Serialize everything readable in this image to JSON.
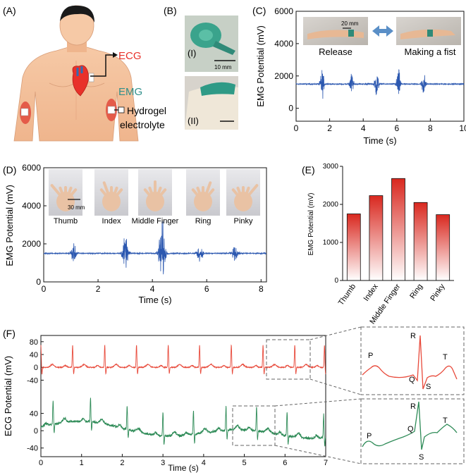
{
  "panel_labels": {
    "a": "(A)",
    "b": "(B)",
    "c": "(C)",
    "d": "(D)",
    "e": "(E)",
    "f": "(F)"
  },
  "panel_a": {
    "ecg": "ECG",
    "emg": "EMG",
    "hydrogel_line1": "Hydrogel",
    "hydrogel_line2": "electrolyte",
    "colors": {
      "ecg": "#e8312a",
      "emg": "#2f8f8a"
    }
  },
  "panel_b": {
    "label1": "(I)",
    "label2": "(II)",
    "scale": "10 mm"
  },
  "panel_c": {
    "scale": "20 mm",
    "release": "Release",
    "fist": "Making a fist",
    "chart_data": {
      "type": "line",
      "ylabel": "EMG Potential (mV)",
      "xlabel": "Time (s)",
      "xlim": [
        0,
        10
      ],
      "ylim": [
        -800,
        6000
      ],
      "x_ticks": [
        "0",
        "2",
        "4",
        "6",
        "8",
        "10"
      ],
      "y_ticks": [
        "0",
        "2000",
        "4000",
        "6000"
      ],
      "baseline": 1500,
      "bursts": [
        {
          "t": 1.55,
          "amp": 650
        },
        {
          "t": 3.3,
          "amp": 500
        },
        {
          "t": 4.8,
          "amp": 600
        },
        {
          "t": 6.1,
          "amp": 650
        },
        {
          "t": 7.6,
          "amp": 550
        }
      ],
      "color": "#2c58b0"
    }
  },
  "panel_d": {
    "scale": "30 mm",
    "fingers": [
      "Thumb",
      "Index",
      "Middle Finger",
      "Ring",
      "Pinky"
    ],
    "chart_data": {
      "type": "line",
      "ylabel": "EMG Potential (mV)",
      "xlabel": "Time (s)",
      "xlim": [
        0,
        8.2
      ],
      "ylim": [
        0,
        6000
      ],
      "x_ticks": [
        "0",
        "2",
        "4",
        "6",
        "8"
      ],
      "y_ticks": [
        "0",
        "2000",
        "4000",
        "6000"
      ],
      "baseline": 1500,
      "bursts": [
        {
          "t": 1.1,
          "amp": 300
        },
        {
          "t": 3.0,
          "amp": 550
        },
        {
          "t": 4.35,
          "amp": 1200
        },
        {
          "t": 5.75,
          "amp": 280
        },
        {
          "t": 7.05,
          "amp": 260
        }
      ],
      "color": "#2c58b0"
    }
  },
  "panel_e": {
    "chart_data": {
      "type": "bar",
      "ylabel": "EMG Potential (mV)",
      "categories": [
        "Thumb",
        "Index",
        "Middle Finger",
        "Ring",
        "Pinky"
      ],
      "values": [
        1750,
        2230,
        2680,
        2050,
        1730
      ],
      "ylim": [
        0,
        3000
      ],
      "y_ticks": [
        "0",
        "1000",
        "2000",
        "3000"
      ],
      "color_top": "#d9281f",
      "color_bottom": "#ffffff"
    }
  },
  "panel_f": {
    "chart_data": {
      "type": "line",
      "ylabel": "ECG Potential (mV)",
      "xlabel": "Time (s)",
      "xlim": [
        0,
        7
      ],
      "x_ticks": [
        "0",
        "1",
        "2",
        "3",
        "4",
        "5",
        "6",
        "7"
      ],
      "top": {
        "y_ticks": [
          "80",
          "40",
          "0",
          "-40"
        ],
        "ylim": [
          -50,
          95
        ],
        "color": "#e8493a",
        "beats": [
          0.0,
          0.78,
          1.57,
          2.35,
          3.13,
          3.9,
          4.68,
          5.46,
          6.24,
          6.97
        ]
      },
      "bottom": {
        "y_ticks": [
          "40",
          "0",
          "-40"
        ],
        "ylim": [
          -60,
          80
        ],
        "color": "#2e8b57",
        "beats": [
          0.3,
          1.22,
          2.12,
          3.0,
          3.75,
          4.55,
          5.3,
          6.05,
          6.95
        ]
      }
    },
    "zoom_top": {
      "p": "P",
      "q": "Q",
      "r": "R",
      "s": "S",
      "t": "T"
    },
    "zoom_bottom": {
      "p": "P",
      "q": "Q",
      "r": "R",
      "s": "S",
      "t": "T"
    }
  }
}
